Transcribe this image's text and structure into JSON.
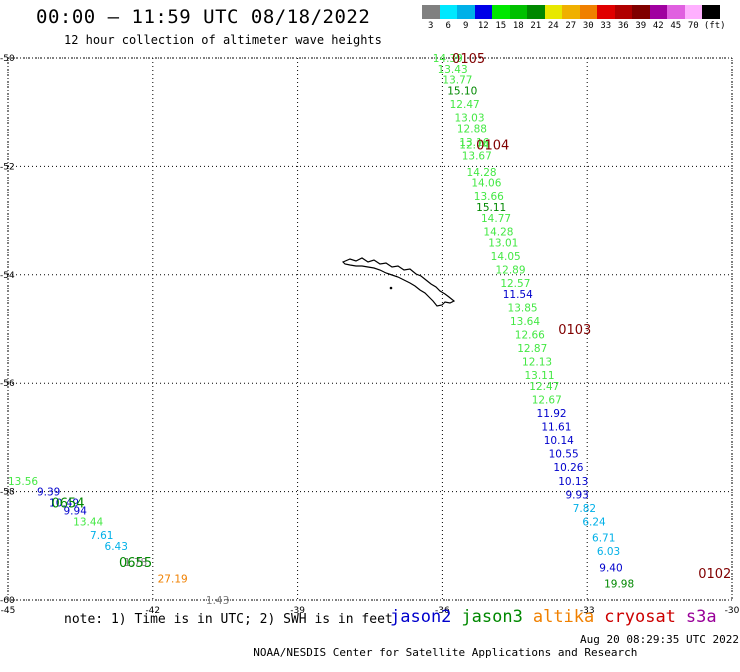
{
  "header": {
    "title": "00:00 – 11:59 UTC 08/18/2022",
    "subtitle": "12 hour collection of altimeter wave heights"
  },
  "colorbar": {
    "swatches": [
      "#808080",
      "#00e8ff",
      "#00b0e8",
      "#0000e8",
      "#00e800",
      "#00c000",
      "#008800",
      "#e8e800",
      "#f0b000",
      "#f08000",
      "#e00000",
      "#b00000",
      "#800000",
      "#a000a0",
      "#e060e0",
      "#ffb0ff",
      "#000000"
    ],
    "labels": [
      "3",
      "6",
      "9",
      "12",
      "15",
      "18",
      "21",
      "24",
      "27",
      "30",
      "33",
      "36",
      "39",
      "42",
      "45",
      "70",
      "(ft)"
    ]
  },
  "map": {
    "lon_ticks": [
      "-45",
      "-42",
      "-39",
      "-36",
      "-33",
      "-30"
    ],
    "lat_ticks": [
      "-50",
      "-52",
      "-54",
      "-56",
      "-58",
      "-60"
    ],
    "lon_range": [
      -45,
      -30
    ],
    "lat_range": [
      -50,
      -60
    ],
    "grid_style": "dotted",
    "land": "South Georgia Island outline",
    "time_labels": [
      {
        "text": "0105",
        "lon": -35.8,
        "lat": -50.0,
        "color": "#800000"
      },
      {
        "text": "0104",
        "lon": -35.3,
        "lat": -51.6,
        "color": "#800000"
      },
      {
        "text": "0103",
        "lon": -33.6,
        "lat": -55.0,
        "color": "#800000"
      },
      {
        "text": "0102",
        "lon": -30.7,
        "lat": -59.5,
        "color": "#800000"
      },
      {
        "text": "0654",
        "lon": -44.1,
        "lat": -58.2,
        "color": "#008800"
      },
      {
        "text": "0655",
        "lon": -42.7,
        "lat": -59.3,
        "color": "#008800"
      }
    ],
    "readings": [
      {
        "text": "14.39",
        "lon": -36.2,
        "lat": -50.0,
        "color": "#44e844"
      },
      {
        "text": "13.43",
        "lon": -36.1,
        "lat": -50.2,
        "color": "#44e844"
      },
      {
        "text": "13.77",
        "lon": -36.0,
        "lat": -50.4,
        "color": "#44e844"
      },
      {
        "text": "15.10",
        "lon": -35.9,
        "lat": -50.6,
        "color": "#008800"
      },
      {
        "text": "12.47",
        "lon": -35.85,
        "lat": -50.85,
        "color": "#44e844"
      },
      {
        "text": "13.03",
        "lon": -35.75,
        "lat": -51.1,
        "color": "#44e844"
      },
      {
        "text": "12.88",
        "lon": -35.7,
        "lat": -51.3,
        "color": "#44e844"
      },
      {
        "text": "13.16",
        "lon": -35.65,
        "lat": -51.55,
        "color": "#44e844"
      },
      {
        "text": "12.74",
        "lon": -35.65,
        "lat": -51.6,
        "color": "#44e844"
      },
      {
        "text": "13.67",
        "lon": -35.6,
        "lat": -51.8,
        "color": "#44e844"
      },
      {
        "text": "14.28",
        "lon": -35.5,
        "lat": -52.1,
        "color": "#44e844"
      },
      {
        "text": "14.06",
        "lon": -35.4,
        "lat": -52.3,
        "color": "#44e844"
      },
      {
        "text": "13.66",
        "lon": -35.35,
        "lat": -52.55,
        "color": "#44e844"
      },
      {
        "text": "15.11",
        "lon": -35.3,
        "lat": -52.75,
        "color": "#008800"
      },
      {
        "text": "14.77",
        "lon": -35.2,
        "lat": -52.95,
        "color": "#44e844"
      },
      {
        "text": "14.28",
        "lon": -35.15,
        "lat": -53.2,
        "color": "#44e844"
      },
      {
        "text": "13.01",
        "lon": -35.05,
        "lat": -53.4,
        "color": "#44e844"
      },
      {
        "text": "14.05",
        "lon": -35.0,
        "lat": -53.65,
        "color": "#44e844"
      },
      {
        "text": "12.89",
        "lon": -34.9,
        "lat": -53.9,
        "color": "#44e844"
      },
      {
        "text": "12.57",
        "lon": -34.8,
        "lat": -54.15,
        "color": "#44e844"
      },
      {
        "text": "11.54",
        "lon": -34.75,
        "lat": -54.35,
        "color": "#0000cc"
      },
      {
        "text": "13.85",
        "lon": -34.65,
        "lat": -54.6,
        "color": "#44e844"
      },
      {
        "text": "13.64",
        "lon": -34.6,
        "lat": -54.85,
        "color": "#44e844"
      },
      {
        "text": "12.66",
        "lon": -34.5,
        "lat": -55.1,
        "color": "#44e844"
      },
      {
        "text": "12.87",
        "lon": -34.45,
        "lat": -55.35,
        "color": "#44e844"
      },
      {
        "text": "12.13",
        "lon": -34.35,
        "lat": -55.6,
        "color": "#44e844"
      },
      {
        "text": "13.11",
        "lon": -34.3,
        "lat": -55.85,
        "color": "#44e844"
      },
      {
        "text": "12.47",
        "lon": -34.2,
        "lat": -56.05,
        "color": "#44e844"
      },
      {
        "text": "12.67",
        "lon": -34.15,
        "lat": -56.3,
        "color": "#44e844"
      },
      {
        "text": "11.92",
        "lon": -34.05,
        "lat": -56.55,
        "color": "#0000cc"
      },
      {
        "text": "11.61",
        "lon": -33.95,
        "lat": -56.8,
        "color": "#0000cc"
      },
      {
        "text": "10.14",
        "lon": -33.9,
        "lat": -57.05,
        "color": "#0000cc"
      },
      {
        "text": "10.55",
        "lon": -33.8,
        "lat": -57.3,
        "color": "#0000cc"
      },
      {
        "text": "10.26",
        "lon": -33.7,
        "lat": -57.55,
        "color": "#0000cc"
      },
      {
        "text": "10.13",
        "lon": -33.6,
        "lat": -57.8,
        "color": "#0000cc"
      },
      {
        "text": "9.93",
        "lon": -33.45,
        "lat": -58.05,
        "color": "#0000cc"
      },
      {
        "text": "7.82",
        "lon": -33.3,
        "lat": -58.3,
        "color": "#00b0e8"
      },
      {
        "text": "6.24",
        "lon": -33.1,
        "lat": -58.55,
        "color": "#00b0e8"
      },
      {
        "text": "6.71",
        "lon": -32.9,
        "lat": -58.85,
        "color": "#00b0e8"
      },
      {
        "text": "6.03",
        "lon": -32.8,
        "lat": -59.1,
        "color": "#00b0e8"
      },
      {
        "text": "9.40",
        "lon": -32.75,
        "lat": -59.4,
        "color": "#0000cc"
      },
      {
        "text": "19.98",
        "lon": -32.65,
        "lat": -59.7,
        "color": "#008800"
      },
      {
        "text": "13.56",
        "lon": -45.0,
        "lat": -57.8,
        "color": "#44e844"
      },
      {
        "text": "9.39",
        "lon": -44.4,
        "lat": -58.0,
        "color": "#0000cc"
      },
      {
        "text": "10.49",
        "lon": -44.15,
        "lat": -58.2,
        "color": "#0000cc"
      },
      {
        "text": "9.94",
        "lon": -43.85,
        "lat": -58.35,
        "color": "#0000cc"
      },
      {
        "text": "13.44",
        "lon": -43.65,
        "lat": -58.55,
        "color": "#44e844"
      },
      {
        "text": "7.61",
        "lon": -43.3,
        "lat": -58.8,
        "color": "#00b0e8"
      },
      {
        "text": "6.43",
        "lon": -43.0,
        "lat": -59.0,
        "color": "#00b0e8"
      },
      {
        "text": "1.78",
        "lon": -42.6,
        "lat": -59.3,
        "color": "#808080"
      },
      {
        "text": "27.19",
        "lon": -41.9,
        "lat": -59.6,
        "color": "#f08000"
      },
      {
        "text": "1.43",
        "lon": -40.9,
        "lat": -60.0,
        "color": "#808080"
      }
    ]
  },
  "footer": {
    "note": "note: 1) Time is in UTC; 2) SWH is in feet",
    "agency": "NOAA/NESDIS Center for Satellite Applications and Research",
    "timestamp": "Aug 20 08:29:35 UTC 2022"
  },
  "satellites": [
    {
      "name": "jason2",
      "color": "#0000cc"
    },
    {
      "name": "jason3",
      "color": "#008800"
    },
    {
      "name": "altika",
      "color": "#f08000"
    },
    {
      "name": "cryosat",
      "color": "#cc0000"
    },
    {
      "name": "s3a",
      "color": "#990099"
    }
  ]
}
